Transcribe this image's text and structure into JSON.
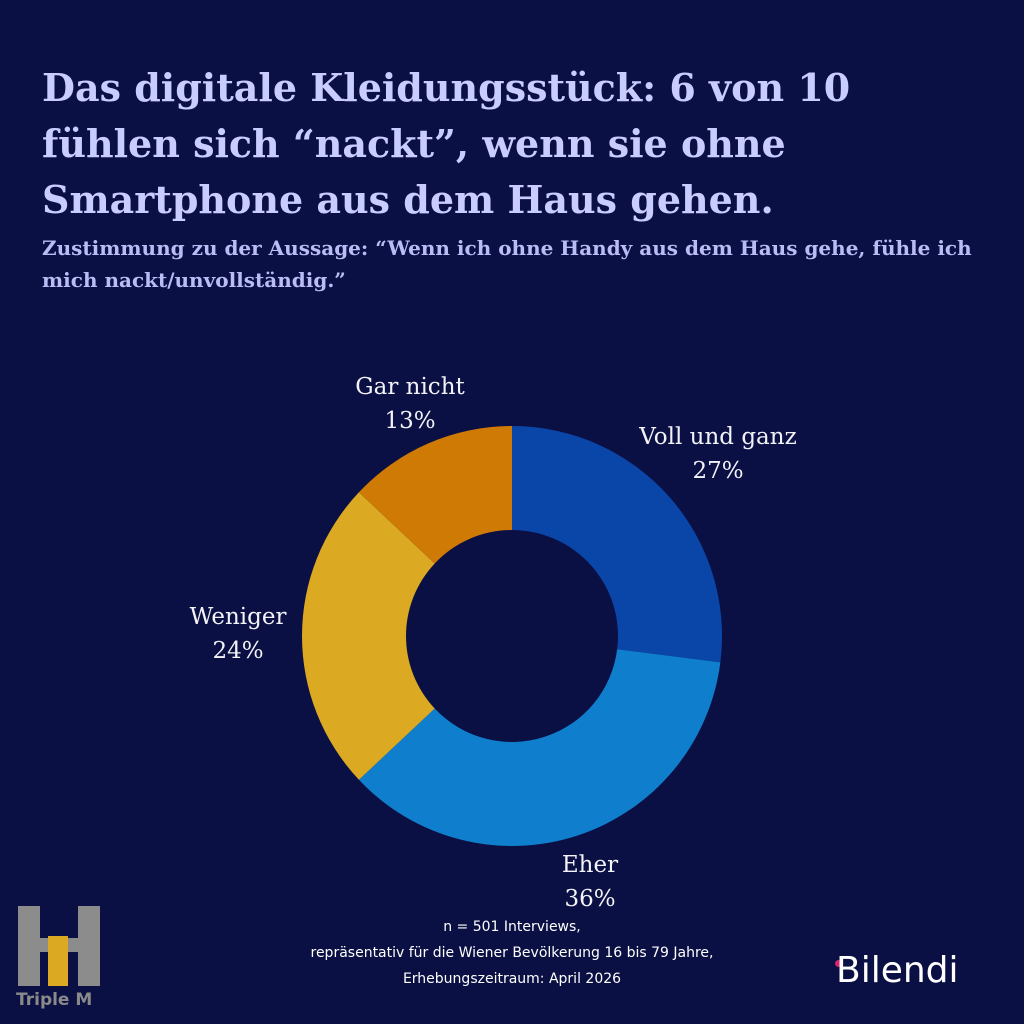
{
  "title": "Das digitale Kleidungsstück: 6 von 10 fühlen sich “nackt”, wenn sie ohne Smartphone aus dem Haus gehen.",
  "subtitle": "Zustimmung zu der Aussage: “Wenn ich ohne Handy aus dem Haus gehe, fühle ich mich nackt/unvollständig.”",
  "chart_data": {
    "type": "pie",
    "variant": "donut",
    "categories": [
      "Voll und ganz",
      "Eher",
      "Weniger",
      "Gar nicht"
    ],
    "values": [
      27,
      36,
      24,
      13
    ],
    "value_labels": [
      "27%",
      "36%",
      "24%",
      "13%"
    ],
    "unit": "%",
    "colors": [
      "#0a46a8",
      "#0f7fcd",
      "#dba922",
      "#cf7a04"
    ]
  },
  "footnote": {
    "line1": "n = 501 Interviews,",
    "line2": "repräsentativ für die Wiener Bevölkerung 16 bis 79 Jahre,",
    "line3": "Erhebungszeitraum: April 2026"
  },
  "logos": {
    "left": "Triple M",
    "right": "Bilendi"
  },
  "colors": {
    "background": "#0b1044",
    "title": "#c9ccff",
    "label": "#f2f2f7"
  }
}
